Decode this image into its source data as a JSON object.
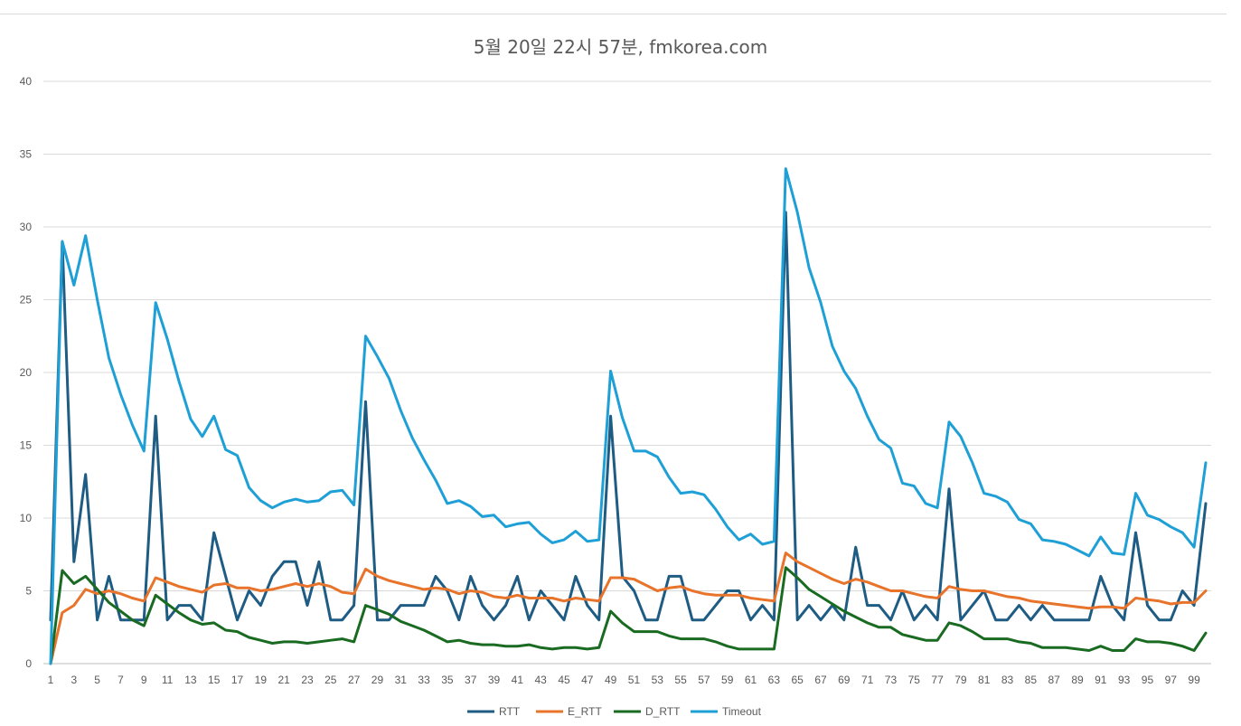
{
  "chart_data": {
    "type": "line",
    "title": "5월 20일 22시 57분, fmkorea.com",
    "xlabel": "",
    "ylabel": "",
    "ylim": [
      0,
      40
    ],
    "y_ticks": [
      "0",
      "5",
      "10",
      "15",
      "20",
      "25",
      "30",
      "35",
      "40"
    ],
    "x_tick_labels": [
      "1",
      "3",
      "5",
      "7",
      "9",
      "11",
      "13",
      "15",
      "17",
      "19",
      "21",
      "23",
      "25",
      "27",
      "29",
      "31",
      "33",
      "35",
      "37",
      "39",
      "41",
      "43",
      "45",
      "47",
      "49",
      "51",
      "53",
      "55",
      "57",
      "59",
      "61",
      "63",
      "65",
      "67",
      "69",
      "71",
      "73",
      "75",
      "77",
      "79",
      "81",
      "83",
      "85",
      "87",
      "89",
      "91",
      "93",
      "95",
      "97",
      "99"
    ],
    "x": [
      1,
      2,
      3,
      4,
      5,
      6,
      7,
      8,
      9,
      10,
      11,
      12,
      13,
      14,
      15,
      16,
      17,
      18,
      19,
      20,
      21,
      22,
      23,
      24,
      25,
      26,
      27,
      28,
      29,
      30,
      31,
      32,
      33,
      34,
      35,
      36,
      37,
      38,
      39,
      40,
      41,
      42,
      43,
      44,
      45,
      46,
      47,
      48,
      49,
      50,
      51,
      52,
      53,
      54,
      55,
      56,
      57,
      58,
      59,
      60,
      61,
      62,
      63,
      64,
      65,
      66,
      67,
      68,
      69,
      70,
      71,
      72,
      73,
      74,
      75,
      76,
      77,
      78,
      79,
      80,
      81,
      82,
      83,
      84,
      85,
      86,
      87,
      88,
      89,
      90,
      91,
      92,
      93,
      94,
      95,
      96,
      97,
      98,
      99,
      100
    ],
    "grid": "horizontal",
    "legend_position": "bottom",
    "series": [
      {
        "name": "RTT",
        "color": "#1f5c84",
        "values": [
          3,
          29,
          7,
          13,
          3,
          6,
          3,
          3,
          3,
          17,
          3,
          4,
          4,
          3,
          9,
          6,
          3,
          5,
          4,
          6,
          7,
          7,
          4,
          7,
          3,
          3,
          4,
          18,
          3,
          3,
          4,
          4,
          4,
          6,
          5,
          3,
          6,
          4,
          3,
          4,
          6,
          3,
          5,
          4,
          3,
          6,
          4,
          3,
          17,
          6,
          5,
          3,
          3,
          6,
          6,
          3,
          3,
          4,
          5,
          5,
          3,
          4,
          3,
          31,
          3,
          4,
          3,
          4,
          3,
          8,
          4,
          4,
          3,
          5,
          3,
          4,
          3,
          12,
          3,
          4,
          5,
          3,
          3,
          4,
          3,
          4,
          3,
          3,
          3,
          3,
          6,
          4,
          3,
          9,
          4,
          3,
          3,
          5,
          4,
          11
        ]
      },
      {
        "name": "E_RTT",
        "color": "#e8732b",
        "values": [
          0,
          3.5,
          4,
          5.1,
          4.8,
          5,
          4.8,
          4.5,
          4.3,
          5.9,
          5.6,
          5.3,
          5.1,
          4.9,
          5.4,
          5.5,
          5.2,
          5.2,
          5,
          5.1,
          5.3,
          5.5,
          5.3,
          5.5,
          5.3,
          4.9,
          4.8,
          6.5,
          6,
          5.7,
          5.5,
          5.3,
          5.1,
          5.2,
          5.1,
          4.8,
          5,
          4.9,
          4.6,
          4.5,
          4.7,
          4.5,
          4.5,
          4.5,
          4.3,
          4.5,
          4.4,
          4.3,
          5.9,
          5.9,
          5.8,
          5.4,
          5,
          5.2,
          5.3,
          5,
          4.8,
          4.7,
          4.7,
          4.7,
          4.5,
          4.4,
          4.3,
          7.6,
          7,
          6.6,
          6.2,
          5.8,
          5.5,
          5.8,
          5.6,
          5.3,
          5,
          5,
          4.8,
          4.6,
          4.5,
          5.3,
          5.1,
          5,
          5,
          4.8,
          4.6,
          4.5,
          4.3,
          4.2,
          4.1,
          4,
          3.9,
          3.8,
          3.9,
          3.9,
          3.8,
          4.5,
          4.4,
          4.3,
          4.1,
          4.2,
          4.2,
          5
        ]
      },
      {
        "name": "D_RTT",
        "color": "#1a6b22",
        "values": [
          0,
          6.4,
          5.5,
          6,
          5.1,
          4.2,
          3.6,
          3,
          2.6,
          4.7,
          4.1,
          3.5,
          3,
          2.7,
          2.8,
          2.3,
          2.2,
          1.8,
          1.6,
          1.4,
          1.5,
          1.5,
          1.4,
          1.5,
          1.6,
          1.7,
          1.5,
          4,
          3.7,
          3.4,
          2.9,
          2.6,
          2.3,
          1.9,
          1.5,
          1.6,
          1.4,
          1.3,
          1.3,
          1.2,
          1.2,
          1.3,
          1.1,
          1,
          1.1,
          1.1,
          1,
          1.1,
          3.6,
          2.8,
          2.2,
          2.2,
          2.2,
          1.9,
          1.7,
          1.7,
          1.7,
          1.5,
          1.2,
          1,
          1,
          1,
          1,
          6.6,
          5.9,
          5.1,
          4.6,
          4.1,
          3.6,
          3.2,
          2.8,
          2.5,
          2.5,
          2,
          1.8,
          1.6,
          1.6,
          2.8,
          2.6,
          2.2,
          1.7,
          1.7,
          1.7,
          1.5,
          1.4,
          1.1,
          1.1,
          1.1,
          1,
          0.9,
          1.2,
          0.9,
          0.9,
          1.7,
          1.5,
          1.5,
          1.4,
          1.2,
          0.9,
          2.1
        ]
      },
      {
        "name": "Timeout",
        "color": "#1ea0d6",
        "values": [
          0,
          29,
          26,
          29.4,
          25,
          21,
          18.5,
          16.4,
          14.6,
          24.8,
          22.3,
          19.4,
          16.8,
          15.6,
          17,
          14.7,
          14.3,
          12.1,
          11.2,
          10.7,
          11.1,
          11.3,
          11.1,
          11.2,
          11.8,
          11.9,
          10.9,
          22.5,
          21.1,
          19.6,
          17.4,
          15.5,
          14,
          12.6,
          11,
          11.2,
          10.8,
          10.1,
          10.2,
          9.4,
          9.6,
          9.7,
          8.9,
          8.3,
          8.5,
          9.1,
          8.4,
          8.5,
          20.1,
          16.9,
          14.6,
          14.6,
          14.2,
          12.8,
          11.7,
          11.8,
          11.6,
          10.6,
          9.4,
          8.5,
          8.9,
          8.2,
          8.4,
          34,
          31,
          27.2,
          24.8,
          21.8,
          20.1,
          18.9,
          17,
          15.4,
          14.8,
          12.4,
          12.2,
          11,
          10.7,
          16.6,
          15.6,
          13.8,
          11.7,
          11.5,
          11.1,
          9.9,
          9.6,
          8.5,
          8.4,
          8.2,
          7.8,
          7.4,
          8.7,
          7.6,
          7.5,
          11.7,
          10.2,
          9.9,
          9.4,
          9,
          8,
          13.8
        ]
      }
    ]
  }
}
